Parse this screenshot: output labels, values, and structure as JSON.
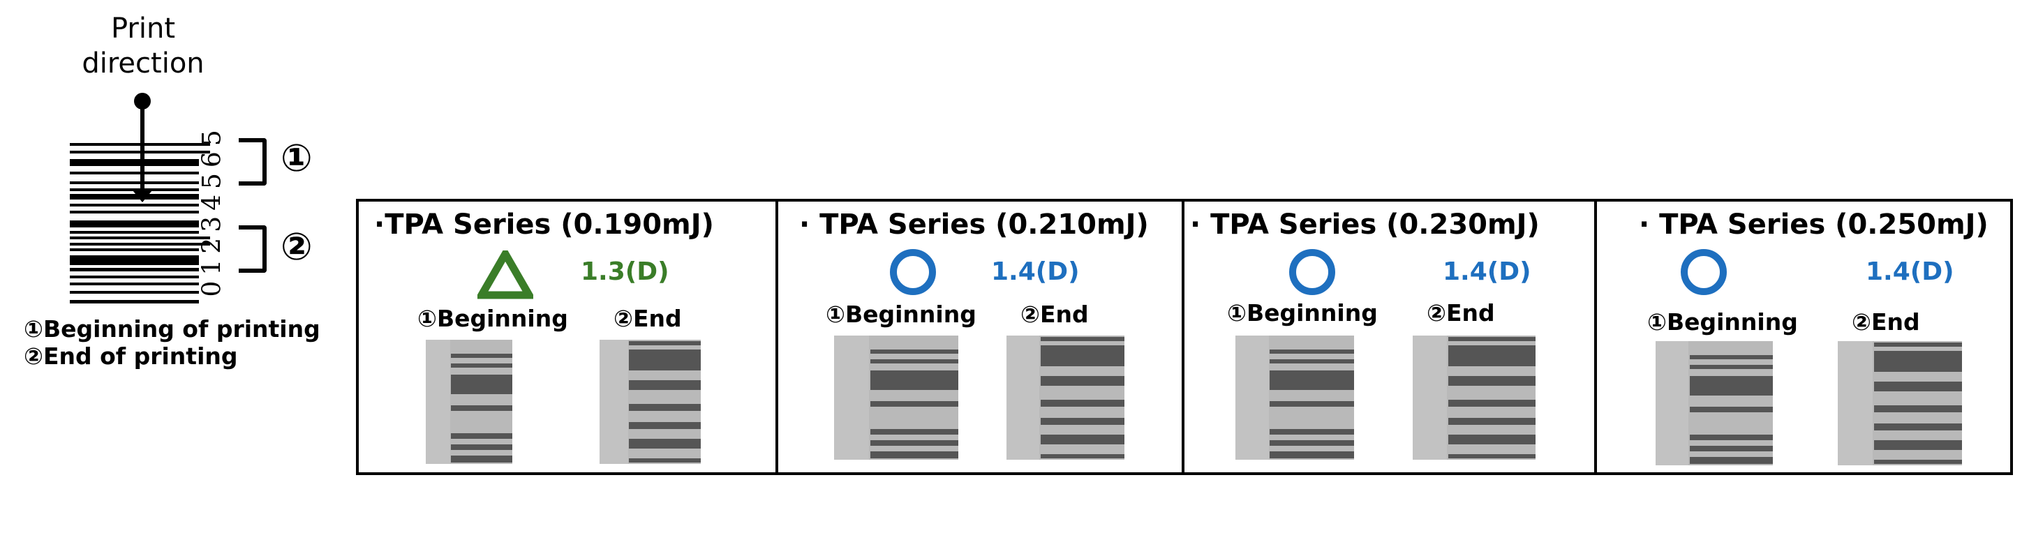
{
  "header": {
    "line1": "Print",
    "line2": "direction"
  },
  "barcode": {
    "digits": "01234565",
    "marker1": "①",
    "marker2": "②"
  },
  "legend": {
    "item1": "①Beginning of printing",
    "item2": "②End of printing"
  },
  "colors": {
    "fair": "#3a7d28",
    "good": "#1e6fbf"
  },
  "panels": [
    {
      "title": "·TPA Series (0.190mJ)",
      "symbol": "triangle",
      "value": "1.3(D)",
      "begin_label": "①Beginning",
      "end_label": "②End"
    },
    {
      "title": "· TPA Series (0.210mJ)",
      "symbol": "circle",
      "value": "1.4(D)",
      "begin_label": "①Beginning",
      "end_label": "②End"
    },
    {
      "title": "· TPA Series (0.230mJ)",
      "symbol": "circle",
      "value": "1.4(D)",
      "begin_label": "①Beginning",
      "end_label": "②End"
    },
    {
      "title": "· TPA Series (0.250mJ)",
      "symbol": "circle",
      "value": "1.4(D)",
      "begin_label": "①Beginning",
      "end_label": "②End"
    }
  ]
}
